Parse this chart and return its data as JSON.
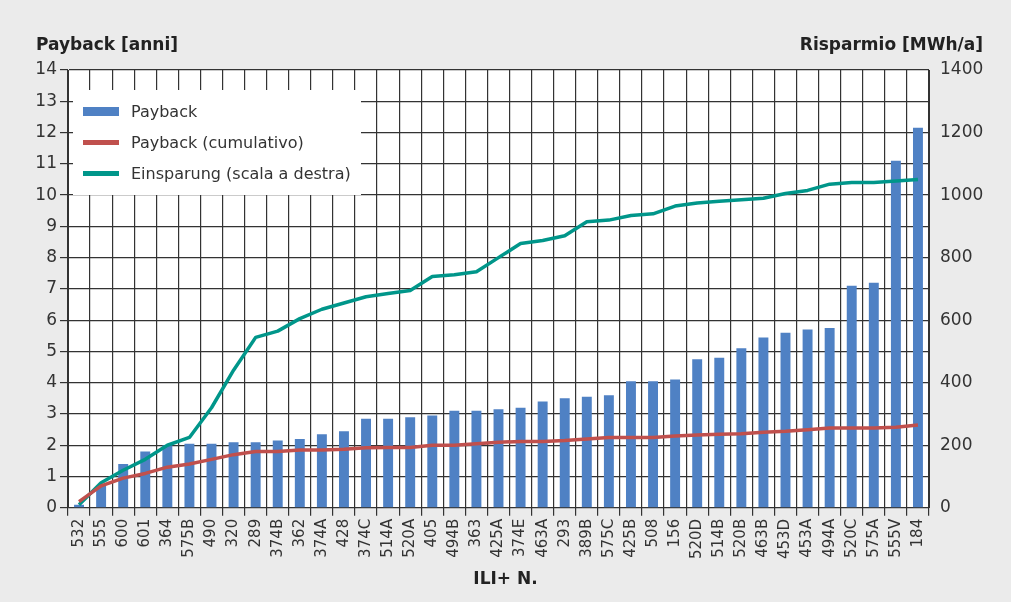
{
  "chart_data": {
    "type": "bar",
    "xlabel": "ILI+ N.",
    "ylabel": "Payback [anni]",
    "y2label": "Risparmio [MWh/a]",
    "categories": [
      "532",
      "555",
      "600",
      "601",
      "364",
      "575B",
      "490",
      "320",
      "289",
      "374B",
      "362",
      "374A",
      "428",
      "374C",
      "514A",
      "520A",
      "405",
      "494B",
      "363",
      "425A",
      "374E",
      "463A",
      "293",
      "389B",
      "575C",
      "425B",
      "508",
      "156",
      "520D",
      "514B",
      "520B",
      "463B",
      "453D",
      "453A",
      "494A",
      "520C",
      "575A",
      "555V",
      "184"
    ],
    "series": [
      {
        "name": "Payback",
        "color": "#4f81c4",
        "values": [
          0.1,
          0.7,
          1.4,
          1.8,
          2.0,
          2.05,
          2.05,
          2.1,
          2.1,
          2.15,
          2.2,
          2.35,
          2.45,
          2.85,
          2.85,
          2.9,
          2.95,
          3.1,
          3.1,
          3.15,
          3.2,
          3.4,
          3.5,
          3.55,
          3.6,
          4.05,
          4.05,
          4.1,
          4.75,
          4.8,
          5.1,
          5.45,
          5.6,
          5.7,
          5.75,
          7.1,
          7.2,
          11.1,
          12.15
        ]
      },
      {
        "name": "Payback (cumulativo)",
        "type": "line",
        "color": "#c0504d",
        "values": [
          0.2,
          0.7,
          0.95,
          1.1,
          1.3,
          1.4,
          1.55,
          1.7,
          1.8,
          1.8,
          1.85,
          1.85,
          1.87,
          1.92,
          1.93,
          1.93,
          2.0,
          2.0,
          2.05,
          2.1,
          2.12,
          2.12,
          2.15,
          2.2,
          2.25,
          2.25,
          2.25,
          2.3,
          2.33,
          2.35,
          2.37,
          2.42,
          2.45,
          2.5,
          2.55,
          2.55,
          2.55,
          2.58,
          2.65
        ]
      },
      {
        "name": "Einsparung (scala a destra)",
        "type": "line",
        "axis": "y2",
        "color": "#00968a",
        "values": [
          10,
          80,
          120,
          155,
          200,
          225,
          320,
          440,
          545,
          565,
          605,
          635,
          655,
          675,
          685,
          695,
          740,
          745,
          755,
          800,
          845,
          855,
          870,
          915,
          920,
          935,
          940,
          965,
          975,
          980,
          985,
          990,
          1005,
          1015,
          1035,
          1040,
          1040,
          1045,
          1050
        ]
      }
    ],
    "ylim": [
      0,
      14
    ],
    "yticks": [
      0,
      1,
      2,
      3,
      4,
      5,
      6,
      7,
      8,
      9,
      10,
      11,
      12,
      13,
      14
    ],
    "y2lim": [
      0,
      1400
    ],
    "y2ticks": [
      0,
      200,
      400,
      600,
      800,
      1000,
      1200,
      1400
    ],
    "grid": true,
    "legend": "top left",
    "marker": "none"
  }
}
